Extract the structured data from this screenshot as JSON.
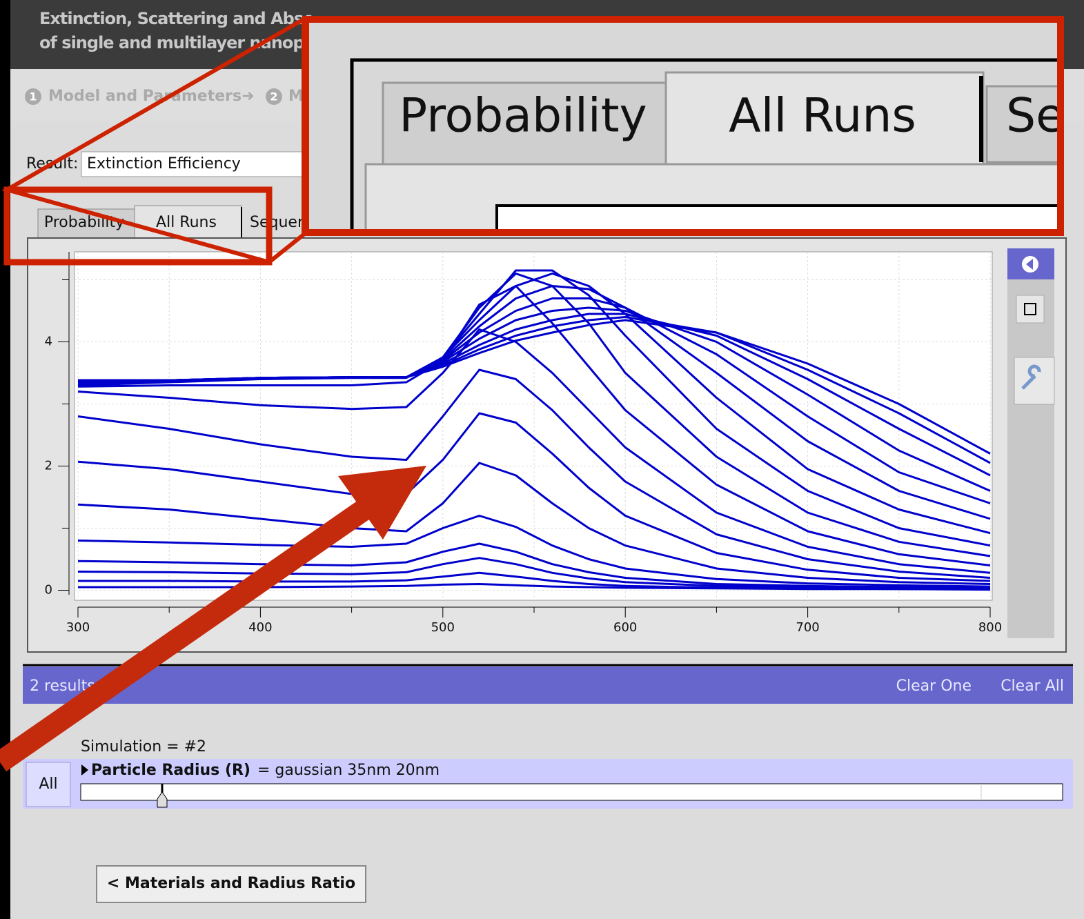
{
  "header": {
    "title_line1": "Extinction, Scattering and Abso",
    "title_line2": "of single and multilayer nanopa"
  },
  "steps": [
    {
      "number": "1",
      "label": "Model and Parameters"
    },
    {
      "number": "2",
      "label": "M"
    }
  ],
  "result": {
    "label": "Result:",
    "value": "Extinction Efficiency"
  },
  "tabs": [
    "Probability",
    "All Runs",
    "Sequence"
  ],
  "chart_data": {
    "type": "line",
    "color": "#0000cc",
    "grid": true,
    "xlim": [
      300,
      800
    ],
    "ylim": [
      -0.15,
      5.45
    ],
    "xticks": [
      300,
      400,
      500,
      600,
      700,
      800
    ],
    "xminor": [
      350,
      450,
      550,
      650,
      750
    ],
    "yticks": [
      0,
      2,
      4
    ],
    "yminor": [
      1,
      3,
      5
    ],
    "x": [
      300,
      350,
      400,
      450,
      480,
      500,
      520,
      540,
      560,
      580,
      600,
      650,
      700,
      750,
      800
    ],
    "series": [
      {
        "values": [
          0.05,
          0.05,
          0.05,
          0.06,
          0.07,
          0.09,
          0.1,
          0.08,
          0.06,
          0.05,
          0.04,
          0.03,
          0.02,
          0.02,
          0.01
        ]
      },
      {
        "values": [
          0.15,
          0.15,
          0.14,
          0.14,
          0.16,
          0.22,
          0.28,
          0.22,
          0.15,
          0.1,
          0.07,
          0.04,
          0.03,
          0.02,
          0.02
        ]
      },
      {
        "values": [
          0.3,
          0.29,
          0.27,
          0.26,
          0.29,
          0.42,
          0.52,
          0.42,
          0.28,
          0.19,
          0.13,
          0.07,
          0.05,
          0.03,
          0.03
        ]
      },
      {
        "values": [
          0.47,
          0.45,
          0.42,
          0.4,
          0.45,
          0.62,
          0.75,
          0.62,
          0.42,
          0.29,
          0.2,
          0.1,
          0.07,
          0.05,
          0.04
        ]
      },
      {
        "values": [
          0.8,
          0.77,
          0.73,
          0.7,
          0.75,
          1.0,
          1.2,
          1.02,
          0.72,
          0.5,
          0.35,
          0.18,
          0.11,
          0.08,
          0.06
        ]
      },
      {
        "values": [
          1.38,
          1.3,
          1.15,
          1.0,
          0.95,
          1.4,
          2.05,
          1.85,
          1.4,
          1.0,
          0.72,
          0.35,
          0.2,
          0.13,
          0.1
        ]
      },
      {
        "values": [
          2.07,
          1.95,
          1.75,
          1.55,
          1.55,
          2.1,
          2.85,
          2.7,
          2.2,
          1.65,
          1.2,
          0.6,
          0.33,
          0.2,
          0.15
        ]
      },
      {
        "values": [
          2.8,
          2.6,
          2.35,
          2.15,
          2.1,
          2.8,
          3.55,
          3.4,
          2.9,
          2.3,
          1.75,
          0.9,
          0.5,
          0.3,
          0.2
        ]
      },
      {
        "values": [
          3.2,
          3.1,
          2.98,
          2.92,
          2.95,
          3.5,
          4.2,
          4.0,
          3.5,
          2.9,
          2.3,
          1.25,
          0.7,
          0.42,
          0.28
        ]
      },
      {
        "values": [
          3.28,
          3.3,
          3.3,
          3.3,
          3.35,
          3.7,
          4.6,
          4.9,
          4.3,
          3.6,
          2.9,
          1.7,
          0.95,
          0.58,
          0.4
        ]
      },
      {
        "values": [
          3.3,
          3.35,
          3.4,
          3.42,
          3.42,
          3.75,
          4.55,
          5.1,
          4.9,
          4.3,
          3.5,
          2.15,
          1.25,
          0.78,
          0.55
        ]
      },
      {
        "values": [
          3.32,
          3.36,
          3.42,
          3.43,
          3.43,
          3.75,
          4.45,
          5.15,
          5.15,
          4.75,
          4.1,
          2.6,
          1.6,
          1.0,
          0.72
        ]
      },
      {
        "values": [
          3.35,
          3.37,
          3.42,
          3.43,
          3.43,
          3.75,
          4.35,
          4.9,
          5.1,
          4.9,
          4.45,
          3.1,
          1.95,
          1.3,
          0.92
        ]
      },
      {
        "values": [
          3.35,
          3.37,
          3.42,
          3.43,
          3.43,
          3.72,
          4.25,
          4.7,
          4.9,
          4.85,
          4.55,
          3.5,
          2.4,
          1.6,
          1.15
        ]
      },
      {
        "values": [
          3.36,
          3.38,
          3.42,
          3.43,
          3.43,
          3.7,
          4.15,
          4.5,
          4.7,
          4.7,
          4.55,
          3.8,
          2.8,
          1.9,
          1.4
        ]
      },
      {
        "values": [
          3.37,
          3.38,
          3.42,
          3.43,
          3.43,
          3.68,
          4.05,
          4.35,
          4.5,
          4.55,
          4.5,
          4.0,
          3.15,
          2.25,
          1.6
        ]
      },
      {
        "values": [
          3.38,
          3.38,
          3.42,
          3.43,
          3.43,
          3.65,
          3.95,
          4.2,
          4.35,
          4.45,
          4.45,
          4.1,
          3.4,
          2.6,
          1.85
        ]
      },
      {
        "values": [
          3.38,
          3.38,
          3.42,
          3.43,
          3.43,
          3.62,
          3.88,
          4.1,
          4.25,
          4.35,
          4.4,
          4.15,
          3.55,
          2.85,
          2.05
        ]
      },
      {
        "values": [
          3.38,
          3.38,
          3.42,
          3.43,
          3.43,
          3.6,
          3.82,
          4.02,
          4.15,
          4.27,
          4.35,
          4.15,
          3.65,
          3.0,
          2.2
        ]
      }
    ]
  },
  "results_bar": {
    "count": "2 results",
    "actions": [
      "Clear One",
      "Clear All"
    ]
  },
  "simulation": {
    "label": "Simulation = #2",
    "all": "All",
    "parameter": "Particle Radius (R)",
    "value": "= gaussian 35nm 20nm"
  },
  "nav_button": "< Materials and Radius Ratio"
}
